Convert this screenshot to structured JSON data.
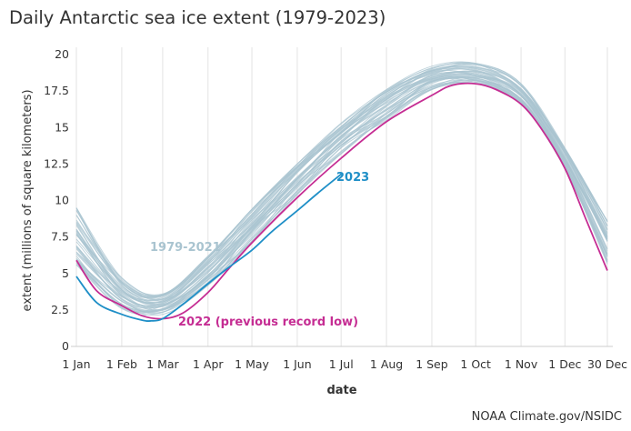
{
  "title": "Daily Antarctic sea ice extent (1979-2023)",
  "credit": "NOAA Climate.gov/NSIDC",
  "chart_data": {
    "type": "line",
    "title": "Daily Antarctic sea ice extent (1979-2023)",
    "xlabel": "date",
    "ylabel": "extent (millions of square kilometers)",
    "ylim": [
      0,
      20
    ],
    "yticks": [
      "0",
      "2.5",
      "5",
      "7.5",
      "10",
      "12.5",
      "15",
      "17.5",
      "20"
    ],
    "xticks": [
      "1 Jan",
      "1 Feb",
      "1 Mar",
      "1 Apr",
      "1 May",
      "1 Jun",
      "1 Jul",
      "1 Aug",
      "1 Sep",
      "1 Oct",
      "1 Nov",
      "1 Dec",
      "30 Dec"
    ],
    "grid": "vertical",
    "series": [
      {
        "name": "1979-2021",
        "color": "#a9c4d0",
        "x": [
          "1 Jan",
          "1 Feb",
          "1 Mar",
          "1 Apr",
          "1 May",
          "1 Jun",
          "1 Jul",
          "1 Aug",
          "1 Sep",
          "1 Oct",
          "1 Nov",
          "1 Dec",
          "30 Dec"
        ],
        "low": [
          5.6,
          2.6,
          2.2,
          4.2,
          7.2,
          10.4,
          13.2,
          15.5,
          17.6,
          18.0,
          16.6,
          12.2,
          5.6
        ],
        "mean": [
          7.0,
          3.6,
          3.0,
          5.2,
          8.4,
          11.6,
          14.4,
          16.8,
          18.4,
          18.5,
          17.2,
          12.8,
          7.0
        ],
        "high": [
          9.5,
          4.7,
          3.6,
          6.2,
          9.4,
          12.5,
          15.3,
          17.6,
          19.2,
          19.4,
          18.0,
          13.6,
          8.6
        ]
      },
      {
        "name": "2022 (previous record low)",
        "color": "#c52d93",
        "x": [
          "1 Jan",
          "15 Jan",
          "1 Feb",
          "15 Feb",
          "1 Mar",
          "15 Mar",
          "1 Apr",
          "15 Apr",
          "1 May",
          "1 Jun",
          "1 Jul",
          "1 Aug",
          "1 Sep",
          "15 Sep",
          "1 Oct",
          "15 Oct",
          "1 Nov",
          "15 Nov",
          "1 Dec",
          "15 Dec",
          "30 Dec"
        ],
        "values": [
          5.9,
          3.8,
          2.8,
          2.1,
          1.9,
          2.3,
          3.7,
          5.3,
          7.1,
          10.2,
          12.9,
          15.4,
          17.2,
          17.9,
          18.0,
          17.6,
          16.6,
          14.9,
          12.2,
          8.8,
          5.2
        ]
      },
      {
        "name": "2023",
        "color": "#1f8fc7",
        "x": [
          "1 Jan",
          "15 Jan",
          "1 Feb",
          "15 Feb",
          "21 Feb",
          "1 Mar",
          "15 Mar",
          "1 Apr",
          "15 Apr",
          "1 May",
          "15 May",
          "1 Jun",
          "15 Jun",
          "1 Jul"
        ],
        "values": [
          4.8,
          3.0,
          2.2,
          1.8,
          1.75,
          1.9,
          2.9,
          4.3,
          5.4,
          6.6,
          7.9,
          9.3,
          10.5,
          11.8
        ]
      }
    ],
    "annotations": [
      "1979-2021",
      "2022 (previous record low)",
      "2023"
    ]
  }
}
